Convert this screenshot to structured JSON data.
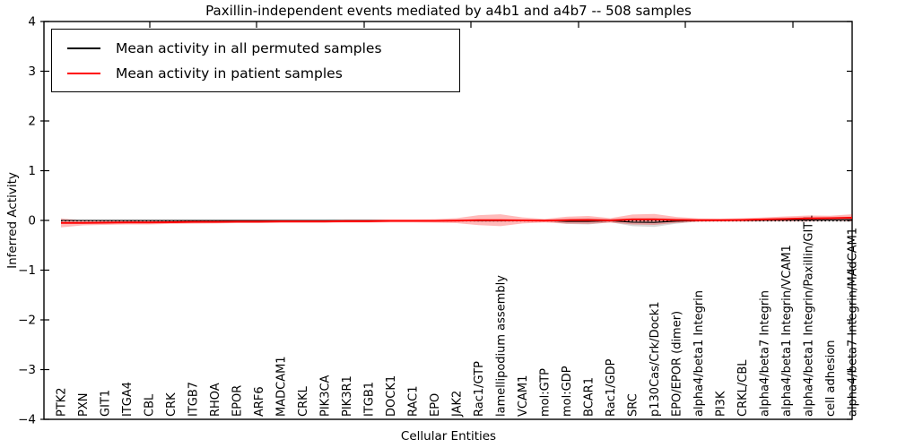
{
  "figure": {
    "title": "Paxillin-independent events mediated by a4b1 and a4b7 -- 508 samples",
    "xlabel": "Cellular Entities",
    "ylabel": "Inferred Activity"
  },
  "chart_data": {
    "type": "line",
    "title": "Paxillin-independent events mediated by a4b1 and a4b7 -- 508 samples",
    "xlabel": "Cellular Entities",
    "ylabel": "Inferred Activity",
    "ylim": [
      -4,
      4
    ],
    "ytick_step": 1,
    "grid": false,
    "legend_position": "upper left",
    "legend": [
      {
        "label": "Mean activity in all permuted samples",
        "color": "#000000"
      },
      {
        "label": "Mean activity in patient samples",
        "color": "#ff0000"
      }
    ],
    "zero_line": {
      "y": 0,
      "style": "dotted",
      "color": "#000000"
    },
    "categories": [
      "PTK2",
      "PXN",
      "GIT1",
      "ITGA4",
      "CBL",
      "CRK",
      "ITGB7",
      "RHOA",
      "EPOR",
      "ARF6",
      "MADCAM1",
      "CRKL",
      "PIK3CA",
      "PIK3R1",
      "ITGB1",
      "DOCK1",
      "RAC1",
      "EPO",
      "JAK2",
      "Rac1/GTP",
      "lamellipodium assembly",
      "VCAM1",
      "mol:GTP",
      "mol:GDP",
      "BCAR1",
      "Rac1/GDP",
      "SRC",
      "p130Cas/Crk/Dock1",
      "EPO/EPOR (dimer)",
      "alpha4/beta1 Integrin",
      "PI3K",
      "CRKL/CBL",
      "alpha4/beta7 Integrin",
      "alpha4/beta1 Integrin/VCAM1",
      "alpha4/beta1 Integrin/Paxillin/GIT1",
      "cell adhesion",
      "alpha4/beta7 Integrin/MAdCAM1"
    ],
    "series": [
      {
        "name": "Mean activity in all permuted samples",
        "color": "#000000",
        "line_width": 1.1,
        "band_color": "rgba(125,125,125,0.30)",
        "values": [
          0,
          0,
          0,
          0,
          0,
          0,
          0,
          0,
          0,
          0,
          0,
          0,
          0,
          0,
          0,
          0,
          0,
          0,
          0,
          -0.005,
          -0.005,
          0,
          0,
          -0.02,
          -0.02,
          -0.005,
          -0.035,
          -0.04,
          -0.015,
          0,
          0,
          0,
          0.005,
          0.01,
          0.01,
          0.01,
          0.015
        ],
        "band_halfwidth": [
          0.01,
          0.01,
          0.01,
          0.01,
          0.01,
          0.01,
          0.01,
          0.01,
          0.01,
          0.01,
          0.01,
          0.01,
          0.01,
          0.01,
          0.01,
          0.01,
          0.01,
          0.01,
          0.012,
          0.02,
          0.02,
          0.012,
          0.012,
          0.05,
          0.06,
          0.03,
          0.08,
          0.09,
          0.05,
          0.02,
          0.015,
          0.015,
          0.02,
          0.03,
          0.035,
          0.035,
          0.045
        ]
      },
      {
        "name": "Mean activity in patient samples",
        "color": "#ff0000",
        "line_width": 2,
        "band_color": "rgba(255,0,0,0.27)",
        "values": [
          -0.05,
          -0.05,
          -0.045,
          -0.04,
          -0.04,
          -0.035,
          -0.03,
          -0.03,
          -0.025,
          -0.025,
          -0.02,
          -0.02,
          -0.02,
          -0.015,
          -0.015,
          -0.01,
          -0.01,
          -0.01,
          -0.005,
          0.005,
          0.005,
          0,
          -0.005,
          0.005,
          0.01,
          0,
          0.02,
          0.02,
          0.01,
          0.005,
          0.005,
          0.01,
          0.02,
          0.03,
          0.04,
          0.045,
          0.055
        ],
        "band_halfwidth": [
          0.09,
          0.05,
          0.045,
          0.04,
          0.04,
          0.035,
          0.035,
          0.03,
          0.03,
          0.03,
          0.03,
          0.03,
          0.03,
          0.03,
          0.03,
          0.03,
          0.03,
          0.035,
          0.05,
          0.1,
          0.12,
          0.06,
          0.035,
          0.07,
          0.08,
          0.045,
          0.1,
          0.11,
          0.06,
          0.035,
          0.03,
          0.035,
          0.04,
          0.05,
          0.06,
          0.05,
          0.07
        ]
      }
    ]
  }
}
